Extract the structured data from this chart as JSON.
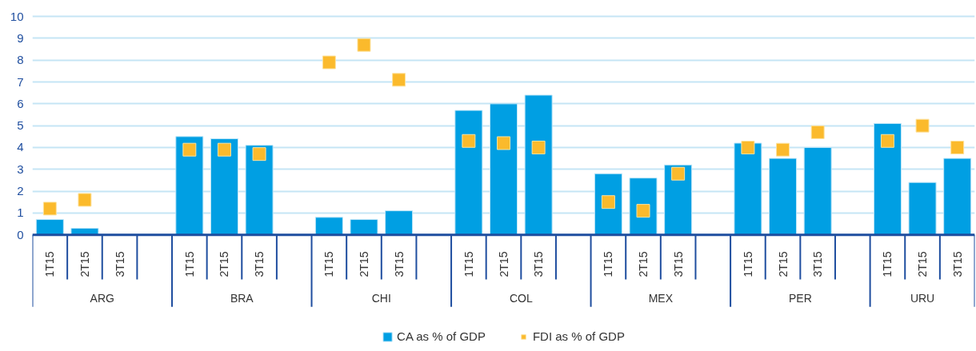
{
  "chart_data": {
    "type": "bar",
    "categories": [
      "1T15",
      "2T15",
      "3T15",
      null,
      "1T15",
      "2T15",
      "3T15",
      null,
      "1T15",
      "2T15",
      "3T15",
      null,
      "1T15",
      "2T15",
      "3T15",
      null,
      "1T15",
      "2T15",
      "3T15",
      null,
      "1T15",
      "2T15",
      "3T15",
      null,
      "1T15",
      "2T15",
      "3T15"
    ],
    "series": [
      {
        "name": "CA as % of GDP",
        "color": "#009fe3",
        "values": [
          0.7,
          0.3,
          null,
          null,
          4.5,
          4.4,
          4.1,
          null,
          0.8,
          0.7,
          1.1,
          null,
          5.7,
          6.0,
          6.4,
          null,
          2.8,
          2.6,
          3.2,
          null,
          4.2,
          3.5,
          4.0,
          null,
          5.1,
          2.4,
          3.5
        ]
      },
      {
        "name": "FDI as % of GDP",
        "type": "scatter",
        "marker": "square",
        "color": "#fbba2c",
        "values": [
          1.2,
          1.6,
          null,
          null,
          3.9,
          3.9,
          3.7,
          null,
          7.9,
          8.7,
          7.1,
          null,
          4.3,
          4.2,
          4.0,
          null,
          1.5,
          1.1,
          2.8,
          null,
          4.0,
          3.9,
          4.7,
          null,
          4.3,
          5.0,
          4.0
        ]
      }
    ],
    "annotations": [
      "ARG",
      "BRA",
      "CHI",
      "COL",
      "MEX",
      "PER",
      "URU"
    ],
    "ylim": [
      0,
      10
    ],
    "yticks": [
      0,
      1,
      2,
      3,
      4,
      5,
      6,
      7,
      8,
      9,
      10
    ],
    "grid": "y",
    "legend": "bottom"
  }
}
